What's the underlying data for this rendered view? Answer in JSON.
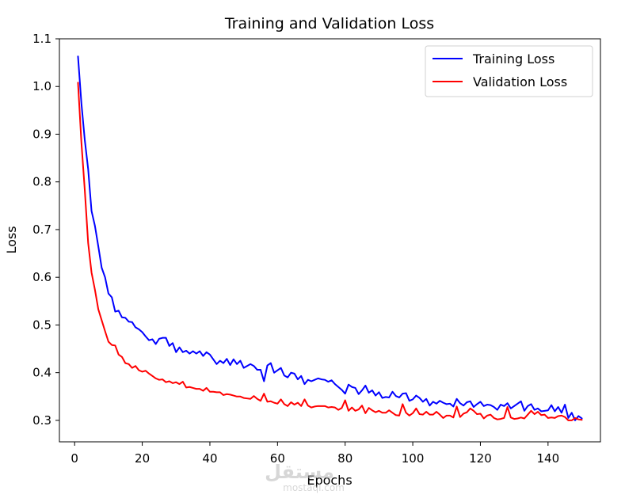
{
  "chart_data": {
    "type": "line",
    "title": "Training and Validation Loss",
    "xlabel": "Epochs",
    "ylabel": "Loss",
    "xlim": [
      -4.5,
      155.5
    ],
    "ylim": [
      0.255,
      1.1
    ],
    "xticks": [
      0,
      20,
      40,
      60,
      80,
      100,
      120,
      140
    ],
    "yticks": [
      0.3,
      0.4,
      0.5,
      0.6,
      0.7,
      0.8,
      0.9,
      1.0,
      1.1
    ],
    "xtick_labels": [
      "0",
      "20",
      "40",
      "60",
      "80",
      "100",
      "120",
      "140"
    ],
    "ytick_labels": [
      "0.3",
      "0.4",
      "0.5",
      "0.6",
      "0.7",
      "0.8",
      "0.9",
      "1.0",
      "1.1"
    ],
    "legend_position": "top-right",
    "series": [
      {
        "name": "Training Loss",
        "color": "#0000ff",
        "x_start": 1,
        "x_step": 1,
        "values": [
          1.063,
          0.965,
          0.888,
          0.827,
          0.739,
          0.708,
          0.665,
          0.62,
          0.6,
          0.566,
          0.558,
          0.528,
          0.53,
          0.516,
          0.515,
          0.507,
          0.506,
          0.495,
          0.491,
          0.485,
          0.476,
          0.468,
          0.47,
          0.46,
          0.471,
          0.473,
          0.473,
          0.456,
          0.462,
          0.443,
          0.453,
          0.443,
          0.446,
          0.44,
          0.445,
          0.44,
          0.445,
          0.435,
          0.443,
          0.438,
          0.428,
          0.418,
          0.425,
          0.42,
          0.429,
          0.416,
          0.428,
          0.418,
          0.425,
          0.41,
          0.414,
          0.418,
          0.414,
          0.406,
          0.406,
          0.382,
          0.415,
          0.42,
          0.4,
          0.405,
          0.41,
          0.394,
          0.39,
          0.4,
          0.398,
          0.386,
          0.393,
          0.376,
          0.385,
          0.382,
          0.385,
          0.388,
          0.386,
          0.385,
          0.381,
          0.384,
          0.376,
          0.37,
          0.364,
          0.356,
          0.375,
          0.37,
          0.368,
          0.355,
          0.363,
          0.373,
          0.358,
          0.363,
          0.352,
          0.359,
          0.347,
          0.349,
          0.348,
          0.36,
          0.351,
          0.348,
          0.356,
          0.357,
          0.341,
          0.344,
          0.352,
          0.347,
          0.339,
          0.345,
          0.331,
          0.339,
          0.335,
          0.341,
          0.337,
          0.334,
          0.335,
          0.329,
          0.345,
          0.336,
          0.331,
          0.338,
          0.34,
          0.328,
          0.334,
          0.339,
          0.33,
          0.333,
          0.332,
          0.328,
          0.322,
          0.333,
          0.33,
          0.336,
          0.325,
          0.33,
          0.335,
          0.34,
          0.32,
          0.33,
          0.334,
          0.322,
          0.325,
          0.319,
          0.32,
          0.321,
          0.332,
          0.319,
          0.328,
          0.316,
          0.333,
          0.305,
          0.316,
          0.3,
          0.309,
          0.304
        ]
      },
      {
        "name": "Validation Loss",
        "color": "#ff0000",
        "x_start": 1,
        "x_step": 1,
        "values": [
          1.008,
          0.883,
          0.783,
          0.672,
          0.61,
          0.574,
          0.533,
          0.51,
          0.487,
          0.465,
          0.458,
          0.457,
          0.438,
          0.433,
          0.42,
          0.418,
          0.41,
          0.414,
          0.405,
          0.402,
          0.404,
          0.398,
          0.393,
          0.388,
          0.385,
          0.386,
          0.38,
          0.382,
          0.378,
          0.38,
          0.376,
          0.381,
          0.369,
          0.37,
          0.368,
          0.366,
          0.366,
          0.362,
          0.368,
          0.36,
          0.36,
          0.359,
          0.359,
          0.353,
          0.355,
          0.354,
          0.352,
          0.35,
          0.35,
          0.347,
          0.346,
          0.345,
          0.351,
          0.345,
          0.341,
          0.356,
          0.339,
          0.34,
          0.337,
          0.335,
          0.344,
          0.334,
          0.33,
          0.338,
          0.333,
          0.337,
          0.33,
          0.344,
          0.331,
          0.327,
          0.329,
          0.33,
          0.33,
          0.33,
          0.327,
          0.328,
          0.327,
          0.322,
          0.326,
          0.342,
          0.32,
          0.327,
          0.32,
          0.323,
          0.331,
          0.315,
          0.326,
          0.321,
          0.317,
          0.32,
          0.316,
          0.316,
          0.321,
          0.316,
          0.311,
          0.31,
          0.334,
          0.316,
          0.31,
          0.315,
          0.325,
          0.313,
          0.312,
          0.318,
          0.312,
          0.312,
          0.318,
          0.312,
          0.305,
          0.31,
          0.31,
          0.306,
          0.329,
          0.307,
          0.314,
          0.317,
          0.325,
          0.32,
          0.313,
          0.314,
          0.304,
          0.31,
          0.312,
          0.305,
          0.302,
          0.303,
          0.305,
          0.328,
          0.306,
          0.303,
          0.304,
          0.306,
          0.304,
          0.312,
          0.32,
          0.313,
          0.318,
          0.311,
          0.312,
          0.305,
          0.306,
          0.305,
          0.309,
          0.31,
          0.307,
          0.3,
          0.3,
          0.305,
          0.302,
          0.301
        ]
      }
    ]
  },
  "watermark": {
    "arabic": "مستقل",
    "latin": "mostaql.com"
  }
}
